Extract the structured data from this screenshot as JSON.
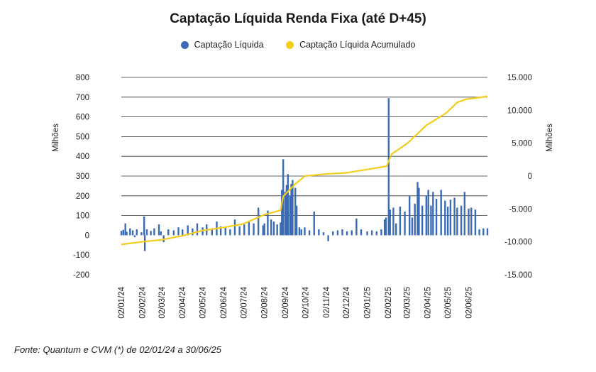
{
  "chart_data": {
    "type": "bar+line",
    "title": "Captação Líquida Renda Fixa (até D+45)",
    "series": [
      {
        "name": "Captação Líquida",
        "type": "bar",
        "axis": "left",
        "color": "#3b6bb5",
        "points": [
          [
            "2024-01-02",
            22
          ],
          [
            "2024-01-05",
            28
          ],
          [
            "2024-01-08",
            60
          ],
          [
            "2024-01-10",
            18
          ],
          [
            "2024-01-15",
            35
          ],
          [
            "2024-01-19",
            25
          ],
          [
            "2024-01-22",
            -10
          ],
          [
            "2024-01-25",
            30
          ],
          [
            "2024-02-01",
            15
          ],
          [
            "2024-02-05",
            95
          ],
          [
            "2024-02-06",
            -80
          ],
          [
            "2024-02-09",
            30
          ],
          [
            "2024-02-15",
            22
          ],
          [
            "2024-02-20",
            35
          ],
          [
            "2024-02-27",
            55
          ],
          [
            "2024-03-01",
            20
          ],
          [
            "2024-03-05",
            -35
          ],
          [
            "2024-03-12",
            30
          ],
          [
            "2024-03-20",
            25
          ],
          [
            "2024-03-27",
            40
          ],
          [
            "2024-04-02",
            30
          ],
          [
            "2024-04-10",
            50
          ],
          [
            "2024-04-17",
            35
          ],
          [
            "2024-04-24",
            60
          ],
          [
            "2024-05-02",
            40
          ],
          [
            "2024-05-08",
            55
          ],
          [
            "2024-05-16",
            35
          ],
          [
            "2024-05-23",
            70
          ],
          [
            "2024-05-29",
            45
          ],
          [
            "2024-06-05",
            40
          ],
          [
            "2024-06-12",
            30
          ],
          [
            "2024-06-19",
            80
          ],
          [
            "2024-06-26",
            45
          ],
          [
            "2024-07-03",
            55
          ],
          [
            "2024-07-10",
            70
          ],
          [
            "2024-07-17",
            60
          ],
          [
            "2024-07-24",
            140
          ],
          [
            "2024-07-31",
            50
          ],
          [
            "2024-08-02",
            60
          ],
          [
            "2024-08-07",
            125
          ],
          [
            "2024-08-12",
            80
          ],
          [
            "2024-08-16",
            70
          ],
          [
            "2024-08-21",
            55
          ],
          [
            "2024-08-26",
            65
          ],
          [
            "2024-08-28",
            230
          ],
          [
            "2024-08-30",
            385
          ],
          [
            "2024-09-02",
            220
          ],
          [
            "2024-09-04",
            255
          ],
          [
            "2024-09-06",
            310
          ],
          [
            "2024-09-09",
            200
          ],
          [
            "2024-09-11",
            260
          ],
          [
            "2024-09-13",
            280
          ],
          [
            "2024-09-17",
            240
          ],
          [
            "2024-09-19",
            150
          ],
          [
            "2024-09-23",
            40
          ],
          [
            "2024-09-26",
            30
          ],
          [
            "2024-10-01",
            40
          ],
          [
            "2024-10-08",
            25
          ],
          [
            "2024-10-15",
            120
          ],
          [
            "2024-10-22",
            30
          ],
          [
            "2024-10-29",
            15
          ],
          [
            "2024-11-05",
            -30
          ],
          [
            "2024-11-12",
            20
          ],
          [
            "2024-11-19",
            25
          ],
          [
            "2024-11-26",
            30
          ],
          [
            "2024-12-03",
            20
          ],
          [
            "2024-12-10",
            25
          ],
          [
            "2024-12-17",
            85
          ],
          [
            "2024-12-24",
            30
          ],
          [
            "2025-01-02",
            20
          ],
          [
            "2025-01-09",
            25
          ],
          [
            "2025-01-16",
            20
          ],
          [
            "2025-01-23",
            30
          ],
          [
            "2025-01-28",
            80
          ],
          [
            "2025-01-30",
            90
          ],
          [
            "2025-02-03",
            695
          ],
          [
            "2025-02-05",
            130
          ],
          [
            "2025-02-10",
            140
          ],
          [
            "2025-02-14",
            60
          ],
          [
            "2025-02-20",
            145
          ],
          [
            "2025-02-27",
            120
          ],
          [
            "2025-03-06",
            200
          ],
          [
            "2025-03-10",
            90
          ],
          [
            "2025-03-14",
            160
          ],
          [
            "2025-03-18",
            270
          ],
          [
            "2025-03-20",
            240
          ],
          [
            "2025-03-25",
            150
          ],
          [
            "2025-03-31",
            200
          ],
          [
            "2025-04-03",
            230
          ],
          [
            "2025-04-07",
            150
          ],
          [
            "2025-04-10",
            220
          ],
          [
            "2025-04-15",
            185
          ],
          [
            "2025-04-22",
            230
          ],
          [
            "2025-04-28",
            175
          ],
          [
            "2025-05-02",
            145
          ],
          [
            "2025-05-06",
            180
          ],
          [
            "2025-05-12",
            190
          ],
          [
            "2025-05-16",
            140
          ],
          [
            "2025-05-22",
            150
          ],
          [
            "2025-05-27",
            220
          ],
          [
            "2025-06-02",
            135
          ],
          [
            "2025-06-06",
            140
          ],
          [
            "2025-06-12",
            130
          ],
          [
            "2025-06-18",
            30
          ],
          [
            "2025-06-24",
            35
          ],
          [
            "2025-06-30",
            35
          ]
        ]
      },
      {
        "name": "Captação Líquida Acumulado",
        "type": "line",
        "axis": "right",
        "color": "#f2cd1b",
        "points": [
          [
            "2024-01-02",
            -10400
          ],
          [
            "2024-02-01",
            -10000
          ],
          [
            "2024-03-01",
            -9700
          ],
          [
            "2024-04-01",
            -9100
          ],
          [
            "2024-05-01",
            -8300
          ],
          [
            "2024-06-03",
            -7800
          ],
          [
            "2024-07-01",
            -7300
          ],
          [
            "2024-08-01",
            -5900
          ],
          [
            "2024-08-26",
            -5200
          ],
          [
            "2024-08-30",
            -3100
          ],
          [
            "2024-09-16",
            -1300
          ],
          [
            "2024-10-01",
            0
          ],
          [
            "2024-11-01",
            300
          ],
          [
            "2024-12-02",
            500
          ],
          [
            "2025-01-02",
            1000
          ],
          [
            "2025-01-31",
            1500
          ],
          [
            "2025-02-07",
            3300
          ],
          [
            "2025-02-14",
            3800
          ],
          [
            "2025-03-03",
            5000
          ],
          [
            "2025-03-31",
            7700
          ],
          [
            "2025-04-30",
            9600
          ],
          [
            "2025-05-16",
            11200
          ],
          [
            "2025-05-30",
            11700
          ],
          [
            "2025-06-30",
            12100
          ]
        ]
      }
    ],
    "y_left": {
      "label": "Milhões",
      "ticks": [
        "800",
        "700",
        "600",
        "500",
        "400",
        "300",
        "200",
        "100",
        "0",
        "-100",
        "-200"
      ],
      "range": [
        -200,
        800
      ]
    },
    "y_right": {
      "label": "Milhões",
      "ticks": [
        "15.000",
        "10.000",
        "5.000",
        "0",
        "-5.000",
        "-10.000",
        "-15.000"
      ],
      "range": [
        -15000,
        15000
      ]
    },
    "x_axis": {
      "tick_labels": [
        "02/01/24",
        "02/02/24",
        "02/03/24",
        "02/04/24",
        "02/05/24",
        "02/06/24",
        "02/07/24",
        "02/08/24",
        "02/09/24",
        "02/10/24",
        "02/11/24",
        "02/12/24",
        "02/01/25",
        "02/02/25",
        "02/03/25",
        "02/04/25",
        "02/05/25",
        "02/06/25"
      ],
      "tick_dates": [
        "2024-01-02",
        "2024-02-02",
        "2024-03-02",
        "2024-04-02",
        "2024-05-02",
        "2024-06-02",
        "2024-07-02",
        "2024-08-02",
        "2024-09-02",
        "2024-10-02",
        "2024-11-02",
        "2024-12-02",
        "2025-01-02",
        "2025-02-02",
        "2025-03-02",
        "2025-04-02",
        "2025-05-02",
        "2025-06-02"
      ],
      "range": [
        "2024-01-02",
        "2025-06-30"
      ]
    },
    "legend_position": "top-center",
    "grid": "horizontal"
  },
  "source_note": "Fonte: Quantum e CVM (*) de 02/01/24 a 30/06/25"
}
